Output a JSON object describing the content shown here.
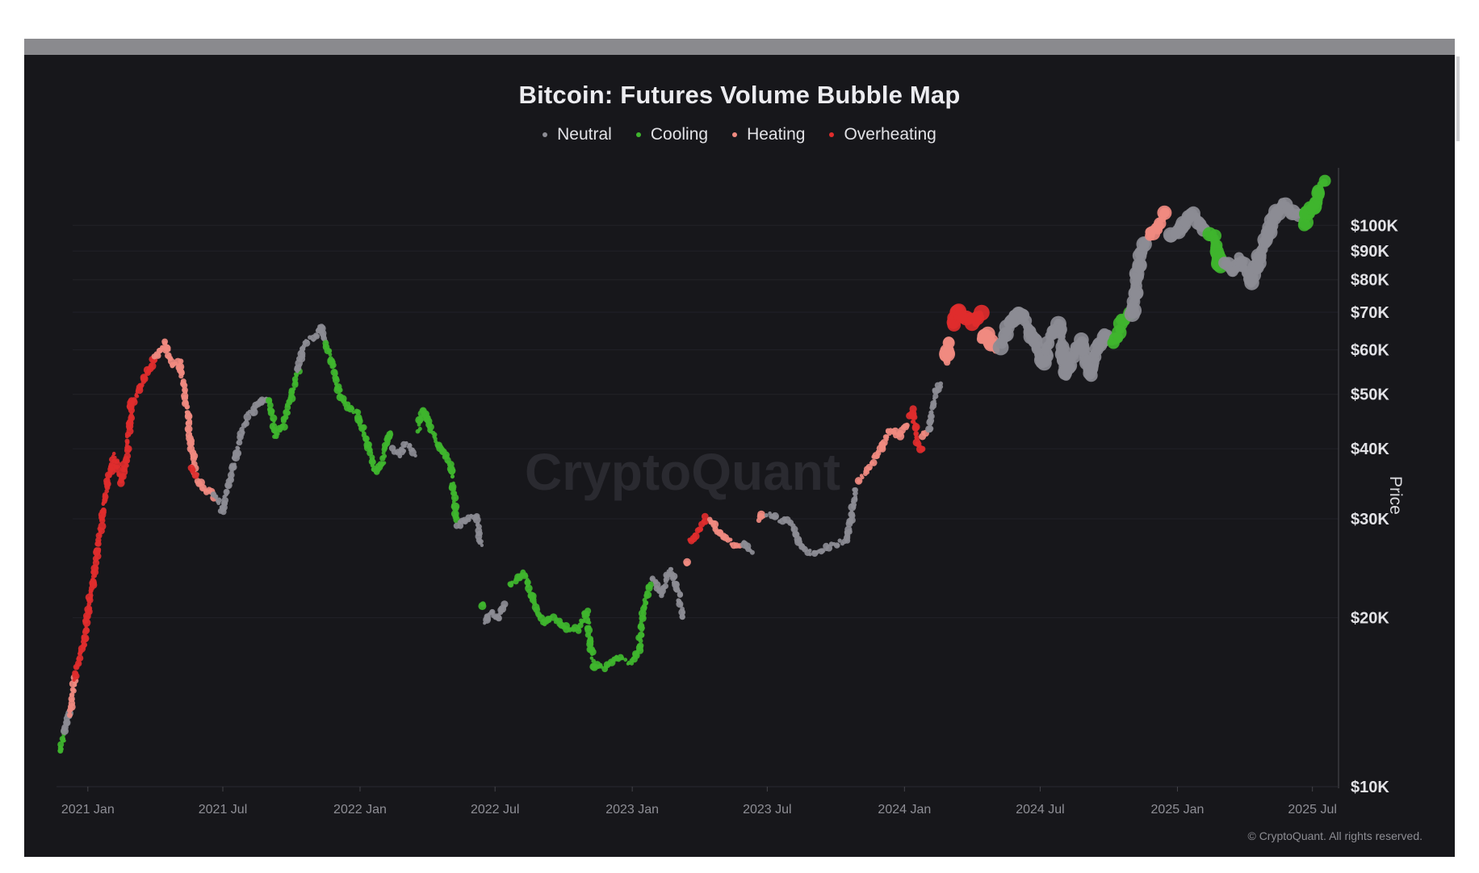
{
  "chart_data": {
    "type": "scatter",
    "title": "Bitcoin: Futures Volume Bubble Map",
    "ylabel": "Price",
    "yscale": "log",
    "ylim": [
      10000,
      130000
    ],
    "xlim": [
      "2020-11-20",
      "2025-08-05"
    ],
    "x_ticks": [
      {
        "label": "2021 Jan",
        "date": "2021-01-01"
      },
      {
        "label": "2021 Jul",
        "date": "2021-07-01"
      },
      {
        "label": "2022 Jan",
        "date": "2022-01-01"
      },
      {
        "label": "2022 Jul",
        "date": "2022-07-01"
      },
      {
        "label": "2023 Jan",
        "date": "2023-01-01"
      },
      {
        "label": "2023 Jul",
        "date": "2023-07-01"
      },
      {
        "label": "2024 Jan",
        "date": "2024-01-01"
      },
      {
        "label": "2024 Jul",
        "date": "2024-07-01"
      },
      {
        "label": "2025 Jan",
        "date": "2025-01-01"
      },
      {
        "label": "2025 Jul",
        "date": "2025-07-01"
      }
    ],
    "y_ticks": [
      {
        "label": "$100K",
        "value": 100000
      },
      {
        "label": "$90K",
        "value": 90000
      },
      {
        "label": "$80K",
        "value": 80000
      },
      {
        "label": "$70K",
        "value": 70000
      },
      {
        "label": "$60K",
        "value": 60000
      },
      {
        "label": "$50K",
        "value": 50000
      },
      {
        "label": "$40K",
        "value": 40000
      },
      {
        "label": "$30K",
        "value": 30000
      },
      {
        "label": "$20K",
        "value": 20000
      },
      {
        "label": "$10K",
        "value": 10000
      }
    ],
    "legend": [
      {
        "name": "Neutral",
        "color": "#8c8c94"
      },
      {
        "name": "Cooling",
        "color": "#3fb52e"
      },
      {
        "name": "Heating",
        "color": "#f08a80"
      },
      {
        "name": "Overheating",
        "color": "#e02c2c"
      }
    ],
    "legend_position": "top-center",
    "grid": true,
    "watermark": "CryptoQuant",
    "copyright": "© CryptoQuant. All rights reserved.",
    "segments": [
      {
        "regime": "Cooling",
        "points": [
          [
            "2020-11-25",
            11500
          ],
          [
            "2020-12-01",
            12500
          ]
        ]
      },
      {
        "regime": "Neutral",
        "points": [
          [
            "2020-12-01",
            12500
          ],
          [
            "2020-12-08",
            13500
          ]
        ]
      },
      {
        "regime": "Heating",
        "points": [
          [
            "2020-12-08",
            13500
          ],
          [
            "2020-12-15",
            15500
          ]
        ]
      },
      {
        "regime": "Overheating",
        "points": [
          [
            "2020-12-15",
            15500
          ],
          [
            "2020-12-28",
            18500
          ],
          [
            "2021-01-10",
            24000
          ],
          [
            "2021-01-25",
            33000
          ],
          [
            "2021-02-05",
            39000
          ],
          [
            "2021-02-15",
            35000
          ],
          [
            "2021-02-22",
            38000
          ],
          [
            "2021-03-01",
            48000
          ],
          [
            "2021-03-15",
            52000
          ],
          [
            "2021-04-01",
            58000
          ]
        ]
      },
      {
        "regime": "Heating",
        "points": [
          [
            "2021-04-01",
            58000
          ],
          [
            "2021-04-15",
            62000
          ],
          [
            "2021-04-25",
            56000
          ],
          [
            "2021-05-05",
            57000
          ],
          [
            "2021-05-15",
            46000
          ],
          [
            "2021-05-25",
            36000
          ],
          [
            "2021-06-05",
            34000
          ],
          [
            "2021-06-20",
            33000
          ]
        ]
      },
      {
        "regime": "Overheating",
        "points": [
          [
            "2021-05-20",
            37000
          ],
          [
            "2021-05-25",
            36000
          ]
        ]
      },
      {
        "regime": "Neutral",
        "points": [
          [
            "2021-06-20",
            33000
          ],
          [
            "2021-07-01",
            31000
          ],
          [
            "2021-07-10",
            35000
          ],
          [
            "2021-07-25",
            42000
          ],
          [
            "2021-08-05",
            46000
          ],
          [
            "2021-08-20",
            48000
          ],
          [
            "2021-09-01",
            49000
          ]
        ]
      },
      {
        "regime": "Cooling",
        "points": [
          [
            "2021-09-01",
            49000
          ],
          [
            "2021-09-10",
            42000
          ],
          [
            "2021-09-20",
            44000
          ],
          [
            "2021-09-28",
            48000
          ],
          [
            "2021-10-05",
            52000
          ],
          [
            "2021-10-10",
            55000
          ]
        ]
      },
      {
        "regime": "Neutral",
        "points": [
          [
            "2021-10-10",
            55000
          ],
          [
            "2021-10-20",
            62000
          ],
          [
            "2021-11-01",
            63000
          ],
          [
            "2021-11-10",
            66000
          ],
          [
            "2021-11-15",
            62000
          ]
        ]
      },
      {
        "regime": "Cooling",
        "points": [
          [
            "2021-11-15",
            62000
          ],
          [
            "2021-11-25",
            57000
          ],
          [
            "2021-12-05",
            50000
          ],
          [
            "2021-12-15",
            48000
          ],
          [
            "2021-12-28",
            46000
          ],
          [
            "2022-01-10",
            42000
          ],
          [
            "2022-01-22",
            36000
          ],
          [
            "2022-02-01",
            38000
          ],
          [
            "2022-02-10",
            43000
          ]
        ]
      },
      {
        "regime": "Neutral",
        "points": [
          [
            "2022-02-15",
            40000
          ],
          [
            "2022-02-25",
            39000
          ],
          [
            "2022-03-05",
            41000
          ],
          [
            "2022-03-15",
            39000
          ]
        ]
      },
      {
        "regime": "Cooling",
        "points": [
          [
            "2022-03-20",
            43000
          ],
          [
            "2022-03-28",
            47000
          ],
          [
            "2022-04-10",
            42000
          ],
          [
            "2022-04-25",
            39000
          ],
          [
            "2022-05-05",
            36000
          ],
          [
            "2022-05-10",
            30000
          ]
        ]
      },
      {
        "regime": "Neutral",
        "points": [
          [
            "2022-05-12",
            29000
          ],
          [
            "2022-05-25",
            30000
          ],
          [
            "2022-06-05",
            30500
          ],
          [
            "2022-06-12",
            27000
          ]
        ]
      },
      {
        "regime": "Cooling",
        "points": [
          [
            "2022-06-15",
            21000
          ]
        ]
      },
      {
        "regime": "Neutral",
        "points": [
          [
            "2022-06-18",
            19500
          ],
          [
            "2022-06-25",
            20500
          ],
          [
            "2022-07-05",
            20000
          ],
          [
            "2022-07-15",
            21000
          ]
        ]
      },
      {
        "regime": "Cooling",
        "points": [
          [
            "2022-07-20",
            23000
          ],
          [
            "2022-08-01",
            23500
          ],
          [
            "2022-08-10",
            24000
          ],
          [
            "2022-08-20",
            21500
          ],
          [
            "2022-09-05",
            19500
          ],
          [
            "2022-09-15",
            20000
          ],
          [
            "2022-10-01",
            19300
          ],
          [
            "2022-10-20",
            19000
          ],
          [
            "2022-11-01",
            20500
          ],
          [
            "2022-11-10",
            16500
          ],
          [
            "2022-11-25",
            16300
          ],
          [
            "2022-12-10",
            17000
          ],
          [
            "2022-12-30",
            16600
          ],
          [
            "2023-01-10",
            17500
          ],
          [
            "2023-01-18",
            21000
          ],
          [
            "2023-01-25",
            23000
          ]
        ]
      },
      {
        "regime": "Neutral",
        "points": [
          [
            "2023-01-28",
            23500
          ],
          [
            "2023-02-10",
            22000
          ],
          [
            "2023-02-20",
            24500
          ],
          [
            "2023-03-05",
            22000
          ],
          [
            "2023-03-10",
            20000
          ]
        ]
      },
      {
        "regime": "Heating",
        "points": [
          [
            "2023-03-15",
            25000
          ]
        ]
      },
      {
        "regime": "Overheating",
        "points": [
          [
            "2023-03-20",
            27500
          ],
          [
            "2023-04-01",
            28500
          ],
          [
            "2023-04-10",
            30000
          ]
        ]
      },
      {
        "regime": "Heating",
        "points": [
          [
            "2023-04-15",
            30000
          ],
          [
            "2023-04-25",
            28500
          ],
          [
            "2023-05-10",
            27500
          ],
          [
            "2023-05-25",
            26800
          ]
        ]
      },
      {
        "regime": "Neutral",
        "points": [
          [
            "2023-06-01",
            27000
          ],
          [
            "2023-06-10",
            26000
          ]
        ]
      },
      {
        "regime": "Heating",
        "points": [
          [
            "2023-06-20",
            30000
          ],
          [
            "2023-06-25",
            30500
          ]
        ]
      },
      {
        "regime": "Neutral",
        "points": [
          [
            "2023-07-01",
            30500
          ],
          [
            "2023-07-15",
            30000
          ],
          [
            "2023-08-01",
            29500
          ],
          [
            "2023-08-18",
            26500
          ],
          [
            "2023-09-01",
            26000
          ],
          [
            "2023-09-15",
            26500
          ],
          [
            "2023-10-01",
            27000
          ],
          [
            "2023-10-15",
            27500
          ],
          [
            "2023-10-22",
            30000
          ],
          [
            "2023-10-28",
            34000
          ]
        ]
      },
      {
        "regime": "Heating",
        "points": [
          [
            "2023-11-01",
            35000
          ],
          [
            "2023-11-15",
            37000
          ],
          [
            "2023-12-01",
            40000
          ],
          [
            "2023-12-10",
            43000
          ],
          [
            "2023-12-25",
            42500
          ],
          [
            "2024-01-05",
            44000
          ]
        ]
      },
      {
        "regime": "Overheating",
        "points": [
          [
            "2024-01-08",
            46000
          ],
          [
            "2024-01-12",
            47000
          ],
          [
            "2024-01-18",
            41000
          ],
          [
            "2024-01-24",
            40000
          ]
        ]
      },
      {
        "regime": "Heating",
        "points": [
          [
            "2024-01-26",
            42000
          ],
          [
            "2024-01-30",
            43000
          ]
        ]
      },
      {
        "regime": "Neutral",
        "points": [
          [
            "2024-02-03",
            43000
          ],
          [
            "2024-02-08",
            47000
          ],
          [
            "2024-02-14",
            51500
          ],
          [
            "2024-02-20",
            52000
          ]
        ]
      },
      {
        "regime": "Heating",
        "points": [
          [
            "2024-02-26",
            57000
          ],
          [
            "2024-03-01",
            62000
          ]
        ]
      },
      {
        "regime": "Overheating",
        "points": [
          [
            "2024-03-05",
            66000
          ],
          [
            "2024-03-12",
            71000
          ],
          [
            "2024-03-18",
            68000
          ],
          [
            "2024-03-25",
            69000
          ],
          [
            "2024-04-05",
            67000
          ],
          [
            "2024-04-12",
            70000
          ]
        ]
      },
      {
        "regime": "Heating",
        "points": [
          [
            "2024-04-15",
            63000
          ],
          [
            "2024-04-22",
            64500
          ],
          [
            "2024-05-01",
            60000
          ]
        ]
      },
      {
        "regime": "Neutral",
        "points": [
          [
            "2024-05-10",
            61000
          ],
          [
            "2024-05-20",
            67000
          ],
          [
            "2024-06-05",
            70000
          ],
          [
            "2024-06-15",
            66000
          ],
          [
            "2024-06-25",
            61000
          ],
          [
            "2024-07-05",
            56500
          ],
          [
            "2024-07-15",
            63000
          ],
          [
            "2024-07-28",
            67000
          ],
          [
            "2024-08-05",
            54000
          ],
          [
            "2024-08-15",
            59000
          ],
          [
            "2024-08-25",
            62000
          ],
          [
            "2024-09-06",
            54000
          ],
          [
            "2024-09-15",
            60000
          ],
          [
            "2024-09-28",
            64000
          ]
        ]
      },
      {
        "regime": "Cooling",
        "points": [
          [
            "2024-10-05",
            62000
          ],
          [
            "2024-10-12",
            63000
          ],
          [
            "2024-10-20",
            68000
          ],
          [
            "2024-10-28",
            69500
          ]
        ]
      },
      {
        "regime": "Neutral",
        "points": [
          [
            "2024-11-02",
            69000
          ],
          [
            "2024-11-06",
            75000
          ],
          [
            "2024-11-12",
            88000
          ],
          [
            "2024-11-20",
            94000
          ]
        ]
      },
      {
        "regime": "Heating",
        "points": [
          [
            "2024-11-25",
            96000
          ],
          [
            "2024-12-05",
            99000
          ],
          [
            "2024-12-17",
            106000
          ]
        ]
      },
      {
        "regime": "Neutral",
        "points": [
          [
            "2024-12-22",
            96000
          ],
          [
            "2025-01-05",
            98000
          ],
          [
            "2025-01-20",
            105000
          ],
          [
            "2025-01-30",
            102000
          ],
          [
            "2025-02-05",
            98000
          ]
        ]
      },
      {
        "regime": "Cooling",
        "points": [
          [
            "2025-02-10",
            96000
          ],
          [
            "2025-02-20",
            95000
          ],
          [
            "2025-02-28",
            84000
          ]
        ]
      },
      {
        "regime": "Neutral",
        "points": [
          [
            "2025-03-05",
            86000
          ],
          [
            "2025-03-15",
            83000
          ],
          [
            "2025-03-25",
            87000
          ],
          [
            "2025-04-05",
            82000
          ],
          [
            "2025-04-10",
            79000
          ],
          [
            "2025-04-20",
            87000
          ],
          [
            "2025-05-01",
            95000
          ],
          [
            "2025-05-10",
            103000
          ],
          [
            "2025-05-22",
            110000
          ],
          [
            "2025-06-05",
            105000
          ],
          [
            "2025-06-15",
            104000
          ]
        ]
      },
      {
        "regime": "Cooling",
        "points": [
          [
            "2025-06-20",
            101000
          ],
          [
            "2025-06-28",
            107000
          ],
          [
            "2025-07-05",
            109000
          ],
          [
            "2025-07-11",
            117000
          ],
          [
            "2025-07-18",
            119000
          ]
        ]
      }
    ]
  }
}
